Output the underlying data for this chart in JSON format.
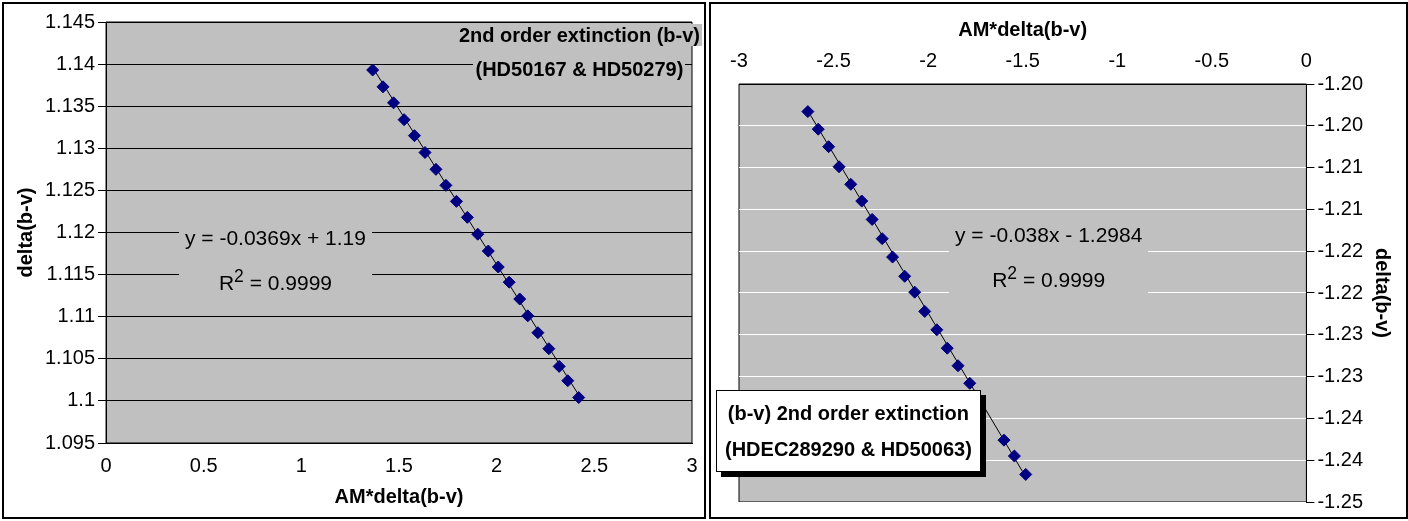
{
  "chart_data": [
    {
      "type": "scatter",
      "title": "2nd order extinction (b-v)\n(HD50167 & HD50279)",
      "xlabel": "AM*delta(b-v)",
      "ylabel": "delta(b-v)",
      "xlim": [
        0,
        3
      ],
      "xticks": [
        0,
        0.5,
        1,
        1.5,
        2,
        2.5,
        3
      ],
      "ylim": [
        1.095,
        1.145
      ],
      "yticks": [
        1.095,
        1.1,
        1.105,
        1.11,
        1.115,
        1.12,
        1.125,
        1.13,
        1.135,
        1.14,
        1.145
      ],
      "grid": "y",
      "legend": false,
      "marker": "diamond",
      "annotations": [
        "y = -0.0369x + 1.19",
        "R$^{2}$ = 0.9999"
      ],
      "series": [
        {
          "type": "scatter",
          "color": "#000080",
          "x": [
            1.365,
            1.418,
            1.472,
            1.526,
            1.579,
            1.633,
            1.689,
            1.74,
            1.794,
            1.85,
            1.903,
            1.957,
            2.008,
            2.064,
            2.118,
            2.159,
            2.211,
            2.267,
            2.32,
            2.364,
            2.42
          ],
          "values": [
            1.1393,
            1.1373,
            1.1354,
            1.1334,
            1.1315,
            1.1295,
            1.1275,
            1.1256,
            1.1237,
            1.1218,
            1.1198,
            1.1178,
            1.1159,
            1.1141,
            1.1121,
            1.1101,
            1.1081,
            1.1062,
            1.1041,
            1.1024,
            1.1004
          ]
        },
        {
          "type": "line",
          "marker": "none",
          "color": "#000000",
          "x": [
            1.365,
            2.42
          ],
          "values": [
            1.1396,
            1.1007
          ]
        }
      ]
    },
    {
      "type": "scatter",
      "title": "(b-v) 2nd order extinction\n(HDEC289290 & HD50063)",
      "xlabel": "AM*delta(b-v)",
      "ylabel": "delta(b-v)",
      "xlim": [
        -3,
        0
      ],
      "xticks": [
        -3,
        -2.5,
        -2,
        -1.5,
        -1,
        -0.5,
        0
      ],
      "ylim": [
        -1.245,
        -1.195
      ],
      "yticks": [
        {
          "value": -1.195,
          "label": "-1.20"
        },
        {
          "value": -1.2,
          "label": "-1.20"
        },
        {
          "value": -1.205,
          "label": "-1.21"
        },
        {
          "value": -1.21,
          "label": "-1.21"
        },
        {
          "value": -1.215,
          "label": "-1.22"
        },
        {
          "value": -1.22,
          "label": "-1.22"
        },
        {
          "value": -1.225,
          "label": "-1.23"
        },
        {
          "value": -1.23,
          "label": "-1.23"
        },
        {
          "value": -1.235,
          "label": "-1.24"
        },
        {
          "value": -1.24,
          "label": "-1.24"
        },
        {
          "value": -1.245,
          "label": "-1.25"
        }
      ],
      "grid": "y",
      "legend": false,
      "marker": "diamond",
      "annotations": [
        "y = -0.038x - 1.2984",
        "R$^{2}$ = 0.9999"
      ],
      "series": [
        {
          "type": "scatter",
          "color": "#000080",
          "x": [
            -2.636,
            -2.581,
            -2.526,
            -2.471,
            -2.409,
            -2.351,
            -2.296,
            -2.243,
            -2.188,
            -2.124,
            -2.071,
            -2.018,
            -1.954,
            -1.899,
            -1.842,
            -1.78,
            -1.599,
            -1.544,
            -1.484
          ],
          "values": [
            -1.1983,
            -1.2004,
            -1.2025,
            -1.2049,
            -1.207,
            -1.209,
            -1.2112,
            -1.2135,
            -1.2157,
            -1.218,
            -1.2199,
            -1.2222,
            -1.2244,
            -1.2266,
            -1.2287,
            -1.2308,
            -1.2376,
            -1.2395,
            -1.2417
          ]
        },
        {
          "type": "line",
          "marker": "none",
          "color": "#000000",
          "x": [
            -2.636,
            -1.484
          ],
          "values": [
            -1.1982,
            -1.242
          ]
        }
      ]
    }
  ]
}
